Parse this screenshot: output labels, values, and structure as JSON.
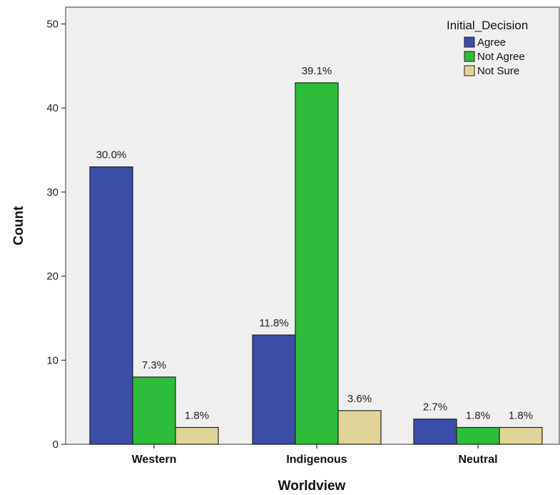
{
  "chart_data": {
    "type": "bar",
    "title": "",
    "xlabel": "Worldview",
    "ylabel": "Count",
    "categories": [
      "Western",
      "Indigenous",
      "Neutral"
    ],
    "ylim": [
      0,
      52
    ],
    "yticks": [
      0,
      10,
      20,
      30,
      40,
      50
    ],
    "grid": false,
    "legend": {
      "title": "Initial_Decision",
      "placement": "top-right"
    },
    "series": [
      {
        "name": "Agree",
        "color": "#3a4ea8",
        "values": [
          33,
          13,
          3
        ],
        "labels": [
          "30.0%",
          "11.8%",
          "2.7%"
        ]
      },
      {
        "name": "Not Agree",
        "color": "#2ebd3a",
        "values": [
          8,
          43,
          2
        ],
        "labels": [
          "7.3%",
          "39.1%",
          "1.8%"
        ]
      },
      {
        "name": "Not Sure",
        "color": "#e0d596",
        "values": [
          2,
          4,
          2
        ],
        "labels": [
          "1.8%",
          "3.6%",
          "1.8%"
        ]
      }
    ],
    "plot_background": "#efefef"
  }
}
